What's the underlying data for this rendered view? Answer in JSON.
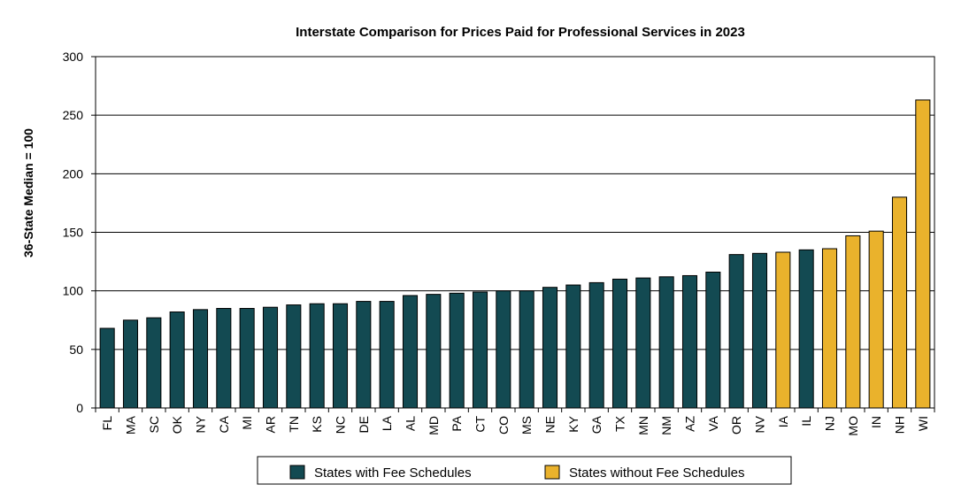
{
  "chart_data": {
    "type": "bar",
    "title": "Interstate Comparison for Prices Paid for Professional Services in 2023",
    "xlabel": "",
    "ylabel": "36-State Median = 100",
    "ylim": [
      0,
      300
    ],
    "yticks": [
      0,
      50,
      100,
      150,
      200,
      250,
      300
    ],
    "grid": true,
    "legend_position": "bottom",
    "categories": [
      "FL",
      "MA",
      "SC",
      "OK",
      "NY",
      "CA",
      "MI",
      "AR",
      "TN",
      "KS",
      "NC",
      "DE",
      "LA",
      "AL",
      "MD",
      "PA",
      "CT",
      "CO",
      "MS",
      "NE",
      "KY",
      "GA",
      "TX",
      "MN",
      "NM",
      "AZ",
      "VA",
      "OR",
      "NV",
      "IA",
      "IL",
      "NJ",
      "MO",
      "IN",
      "NH",
      "WI"
    ],
    "values": [
      68,
      75,
      77,
      82,
      84,
      85,
      85,
      86,
      88,
      89,
      89,
      91,
      91,
      96,
      97,
      98,
      99,
      100,
      100,
      103,
      105,
      107,
      110,
      111,
      112,
      113,
      116,
      131,
      132,
      133,
      135,
      136,
      147,
      151,
      180,
      263
    ],
    "groups": [
      "with",
      "with",
      "with",
      "with",
      "with",
      "with",
      "with",
      "with",
      "with",
      "with",
      "with",
      "with",
      "with",
      "with",
      "with",
      "with",
      "with",
      "with",
      "with",
      "with",
      "with",
      "with",
      "with",
      "with",
      "with",
      "with",
      "with",
      "with",
      "with",
      "without",
      "with",
      "without",
      "without",
      "without",
      "without",
      "without"
    ],
    "series": [
      {
        "key": "with",
        "name": "States with Fee Schedules",
        "color": "#134a52"
      },
      {
        "key": "without",
        "name": "States without Fee Schedules",
        "color": "#eab22c"
      }
    ]
  }
}
